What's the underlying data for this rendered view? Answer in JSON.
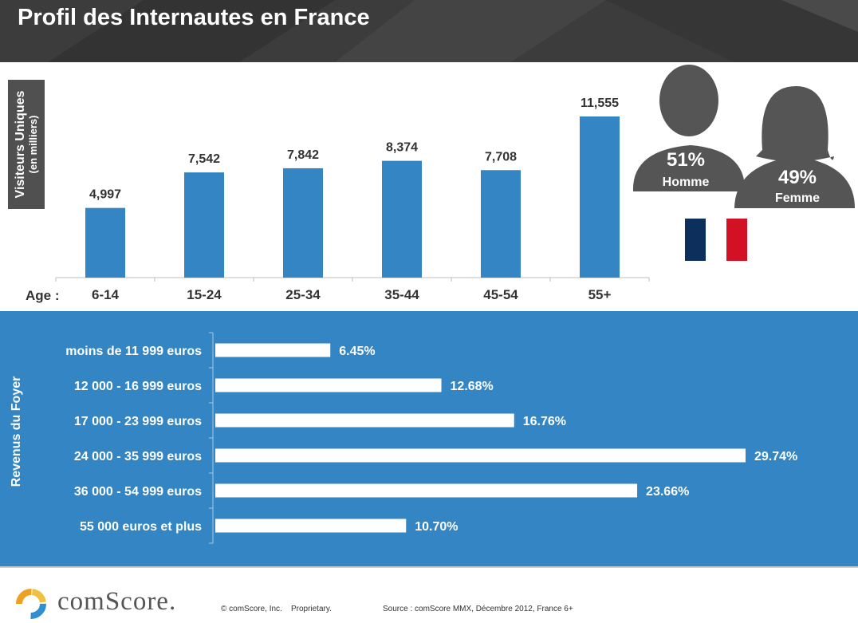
{
  "title": "Profil des Internautes en France",
  "chart_data": [
    {
      "type": "bar",
      "ylabel": "Visiteurs Uniques",
      "ylabel_sub": "(en milliers)",
      "xlabel": "Age :",
      "categories": [
        "6-14",
        "15-24",
        "25-34",
        "35-44",
        "45-54",
        "55+"
      ],
      "values": [
        4997,
        7542,
        7842,
        8374,
        7708,
        11555
      ],
      "value_labels": [
        "4,997",
        "7,542",
        "7,842",
        "8,374",
        "7,708",
        "11,555"
      ],
      "bar_color": "#3385c4"
    },
    {
      "type": "bar",
      "orientation": "horizontal",
      "ylabel": "Revenus du Foyer",
      "categories": [
        "moins de 11 999 euros",
        "12 000 - 16 999 euros",
        "17 000 - 23 999 euros",
        "24 000 - 35 999 euros",
        "36 000 - 54 999 euros",
        "55 000 euros et plus"
      ],
      "values": [
        6.45,
        12.68,
        16.76,
        29.74,
        23.66,
        10.7
      ],
      "value_labels": [
        "6.45%",
        "12.68%",
        "16.76%",
        "29.74%",
        "23.66%",
        "10.70%"
      ],
      "bar_color": "#ffffff",
      "background_color": "#3385c4"
    }
  ],
  "gender": {
    "male_pct": "51%",
    "male_label": "Homme",
    "female_pct": "49%",
    "female_label": "Femme",
    "icon_color": "#555555"
  },
  "flag": {
    "colors": [
      "#0d2f5c",
      "#ffffff",
      "#d31125"
    ]
  },
  "footer": {
    "brand": "comScore.",
    "copyright": "© comScore, Inc.    Proprietary.",
    "source": "Source : comScore MMX, Décembre 2012, France 6+"
  }
}
